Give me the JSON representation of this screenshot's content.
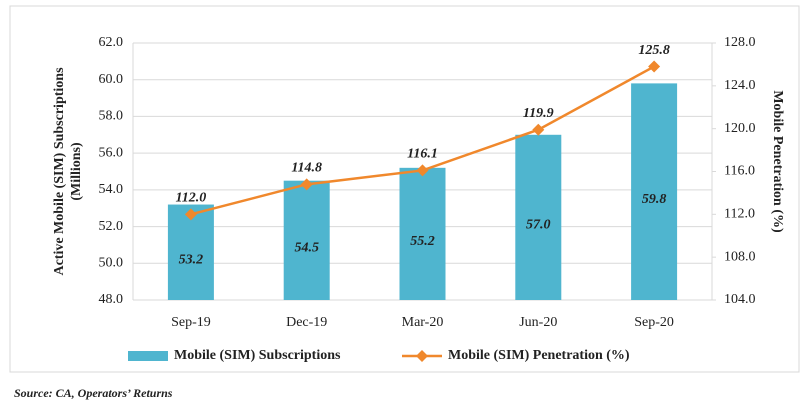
{
  "chart_data": {
    "type": "bar",
    "categories": [
      "Sep-19",
      "Dec-19",
      "Mar-20",
      "Jun-20",
      "Sep-20"
    ],
    "series": [
      {
        "name": "Mobile (SIM) Subscriptions",
        "type": "bar",
        "color": "#4fb5cf",
        "values": [
          53.2,
          54.5,
          55.2,
          57.0,
          59.8
        ],
        "value_labels": [
          "53.2",
          "54.5",
          "55.2",
          "57.0",
          "59.8"
        ]
      },
      {
        "name": "Mobile (SIM) Penetration (%)",
        "type": "line",
        "axis": "y2",
        "color": "#f0882c",
        "values": [
          112.0,
          114.8,
          116.1,
          119.9,
          125.8
        ],
        "value_labels": [
          "112.0",
          "114.8",
          "116.1",
          "119.9",
          "125.8"
        ]
      }
    ],
    "ylabel": [
      "Active Mobile (SIM) Subscriptions",
      "(Millions)"
    ],
    "y2label": "Mobile Penetration (%)",
    "ylim": [
      48,
      62
    ],
    "yticks": [
      {
        "value": 48,
        "label": "48.0"
      },
      {
        "value": 50,
        "label": "50.0"
      },
      {
        "value": 52,
        "label": "52.0"
      },
      {
        "value": 54,
        "label": "54.0"
      },
      {
        "value": 56,
        "label": "56.0"
      },
      {
        "value": 58,
        "label": "58.0"
      },
      {
        "value": 60,
        "label": "60.0"
      },
      {
        "value": 62,
        "label": "62.0"
      }
    ],
    "y2lim": [
      104,
      128
    ],
    "y2ticks": [
      {
        "value": 104,
        "label": "104.0"
      },
      {
        "value": 108,
        "label": "108.0"
      },
      {
        "value": 112,
        "label": "112.0"
      },
      {
        "value": 116,
        "label": "116.0"
      },
      {
        "value": 120,
        "label": "120.0"
      },
      {
        "value": 124,
        "label": "124.0"
      },
      {
        "value": 128,
        "label": "128.0"
      }
    ],
    "grid": true,
    "legend": "bottom",
    "source": "Source: CA, Operators’ Returns"
  }
}
